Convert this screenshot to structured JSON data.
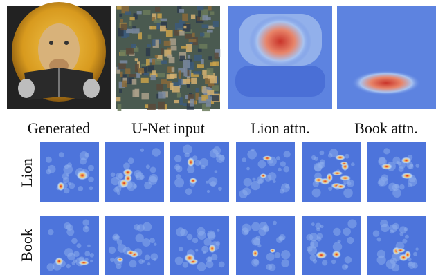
{
  "captions": [
    "Generated",
    "U-Net input",
    "Lion attn.",
    "Book attn."
  ],
  "row_labels": [
    "Lion",
    "Book"
  ]
}
